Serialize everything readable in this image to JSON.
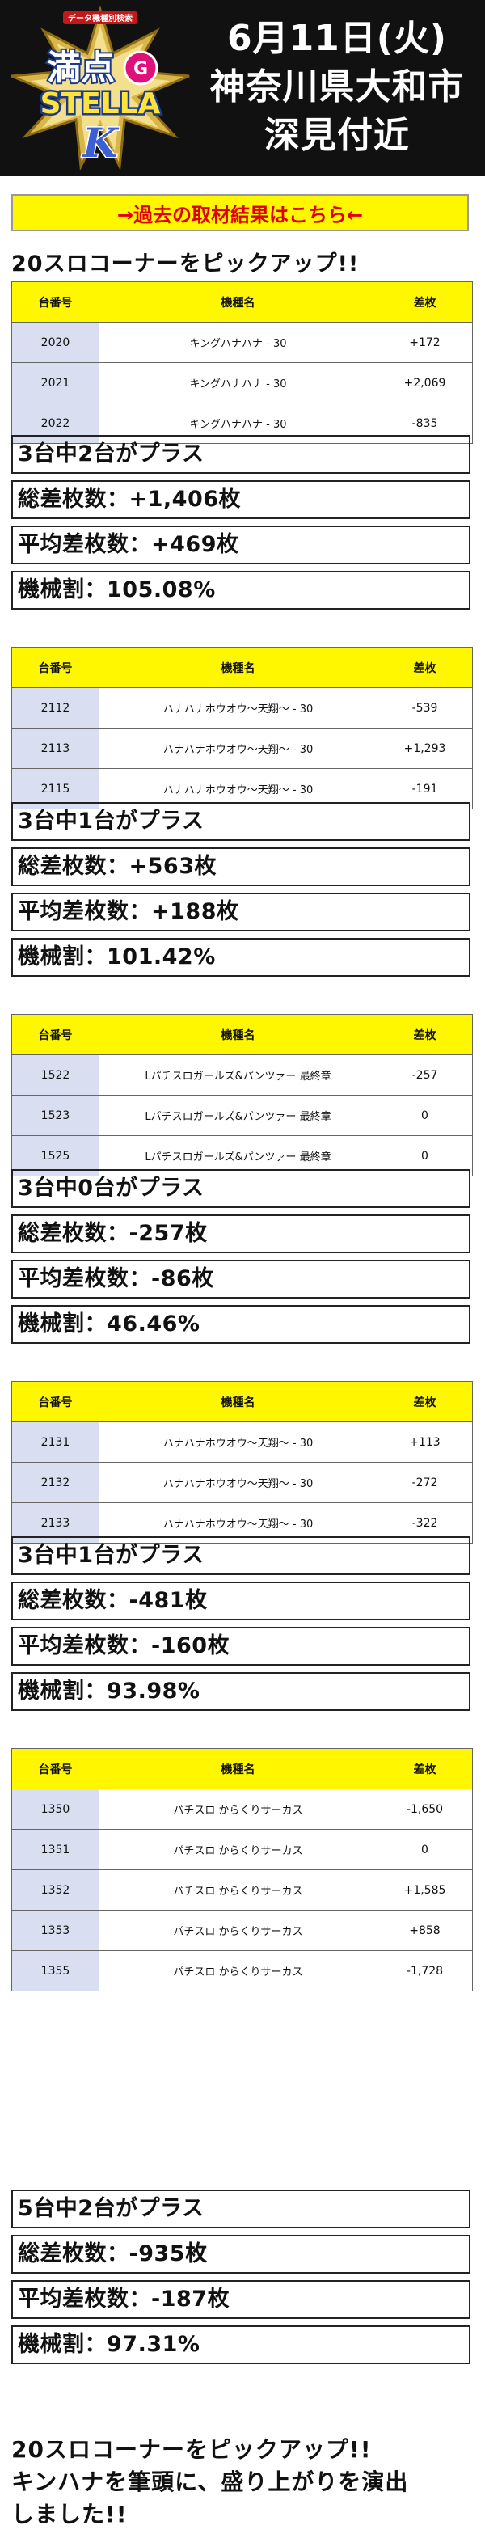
{
  "header": {
    "logo_text": "満点STELLA",
    "logo_small": "データ機種別検索",
    "line1": "6月11日(火)",
    "line2": "神奈川県大和市",
    "line3": "深見付近"
  },
  "link_banner": "→過去の取材結果はこちら←",
  "section_title": "20スロコーナーをピックアップ!!",
  "columns": [
    "台番号",
    "機種名",
    "差枚"
  ],
  "groups": [
    {
      "rows": [
        {
          "num": "2020",
          "machine": "キングハナハナ - 30",
          "diff": "+172"
        },
        {
          "num": "2021",
          "machine": "キングハナハナ - 30",
          "diff": "+2,069"
        },
        {
          "num": "2022",
          "machine": "キングハナハナ - 30",
          "diff": "-835"
        }
      ],
      "plus": "3台中2台がプラス",
      "total": "総差枚数：+1,406枚",
      "avg": "平均差枚数：+469枚",
      "rate": "機械割：105.08%"
    },
    {
      "rows": [
        {
          "num": "2112",
          "machine": "ハナハナホウオウ〜天翔〜 - 30",
          "diff": "-539"
        },
        {
          "num": "2113",
          "machine": "ハナハナホウオウ〜天翔〜 - 30",
          "diff": "+1,293"
        },
        {
          "num": "2115",
          "machine": "ハナハナホウオウ〜天翔〜 - 30",
          "diff": "-191"
        }
      ],
      "plus": "3台中1台がプラス",
      "total": "総差枚数：+563枚",
      "avg": "平均差枚数：+188枚",
      "rate": "機械割：101.42%"
    },
    {
      "rows": [
        {
          "num": "1522",
          "machine": "Lパチスロガールズ&パンツァー 最終章",
          "diff": "-257"
        },
        {
          "num": "1523",
          "machine": "Lパチスロガールズ&パンツァー 最終章",
          "diff": "0"
        },
        {
          "num": "1525",
          "machine": "Lパチスロガールズ&パンツァー 最終章",
          "diff": "0"
        }
      ],
      "plus": "3台中0台がプラス",
      "total": "総差枚数：-257枚",
      "avg": "平均差枚数：-86枚",
      "rate": "機械割：46.46%"
    },
    {
      "rows": [
        {
          "num": "2131",
          "machine": "ハナハナホウオウ〜天翔〜 - 30",
          "diff": "+113"
        },
        {
          "num": "2132",
          "machine": "ハナハナホウオウ〜天翔〜 - 30",
          "diff": "-272"
        },
        {
          "num": "2133",
          "machine": "ハナハナホウオウ〜天翔〜 - 30",
          "diff": "-322"
        }
      ],
      "plus": "3台中1台がプラス",
      "total": "総差枚数：-481枚",
      "avg": "平均差枚数：-160枚",
      "rate": "機械割：93.98%"
    },
    {
      "rows": [
        {
          "num": "1350",
          "machine": "パチスロ からくりサーカス",
          "diff": "-1,650"
        },
        {
          "num": "1351",
          "machine": "パチスロ からくりサーカス",
          "diff": "0"
        },
        {
          "num": "1352",
          "machine": "パチスロ からくりサーカス",
          "diff": "+1,585"
        },
        {
          "num": "1353",
          "machine": "パチスロ からくりサーカス",
          "diff": "+858"
        },
        {
          "num": "1355",
          "machine": "パチスロ からくりサーカス",
          "diff": "-1,728"
        }
      ],
      "plus": "5台中2台がプラス",
      "total": "総差枚数：-935枚",
      "avg": "平均差枚数：-187枚",
      "rate": "機械割：97.31%"
    }
  ],
  "footer": {
    "line1": "20スロコーナーをピックアップ!!",
    "line2": "キンハナを筆頭に、盛り上がりを演出",
    "line3": "しました!!"
  },
  "colors": {
    "header_bg": "#111111",
    "banner_bg": "#fff700",
    "banner_text": "#e00000",
    "table_header_bg": "#fff700",
    "num_cell_bg": "#d9dff0"
  }
}
